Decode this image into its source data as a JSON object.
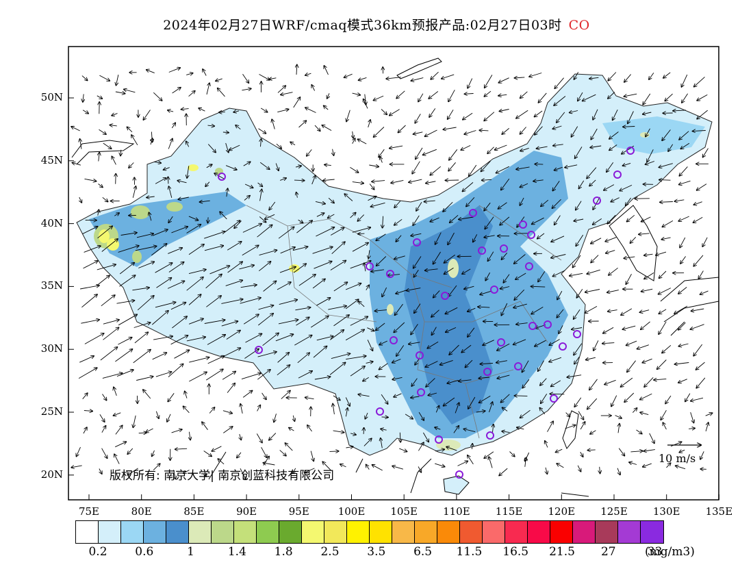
{
  "header": {
    "title": "2024年02月27日WRF/cmaq模式36km预报产品:02月27日03时",
    "species": "CO"
  },
  "map": {
    "lat_labels": [
      "50N",
      "45N",
      "40N",
      "35N",
      "30N",
      "25N",
      "20N"
    ],
    "lon_labels": [
      "75E",
      "80E",
      "85E",
      "90E",
      "95E",
      "100E",
      "105E",
      "110E",
      "115E",
      "120E",
      "125E",
      "130E",
      "135E"
    ],
    "copyright": "版权所有: 南京大学| 南京创蓝科技有限公司",
    "wind_scale_label": "10 m/s",
    "colors": {
      "frame": "#000000",
      "station_marker": "#8a1ad8",
      "wind_arrow": "#000000"
    }
  },
  "legend": {
    "colors": [
      "#ffffff",
      "#d4effa",
      "#9bd7f4",
      "#6cb1e0",
      "#4a8fcc",
      "#dceab8",
      "#bcd88a",
      "#c4e07a",
      "#8ecb50",
      "#6aaa2e",
      "#f4f870",
      "#f2e85a",
      "#fff200",
      "#ffe200",
      "#f8b848",
      "#f8a828",
      "#fa8a08",
      "#f05a30",
      "#fa6a6a",
      "#f82a50",
      "#f80a48",
      "#fa0000",
      "#d81a7a",
      "#a83a5a",
      "#a43ad4",
      "#8a2ae0"
    ],
    "ticks": [
      "0.2",
      "0.6",
      "1",
      "1.4",
      "1.8",
      "2.5",
      "3.5",
      "6.5",
      "11.5",
      "16.5",
      "21.5",
      "27",
      "33"
    ],
    "unit": "(mg/m3)"
  }
}
